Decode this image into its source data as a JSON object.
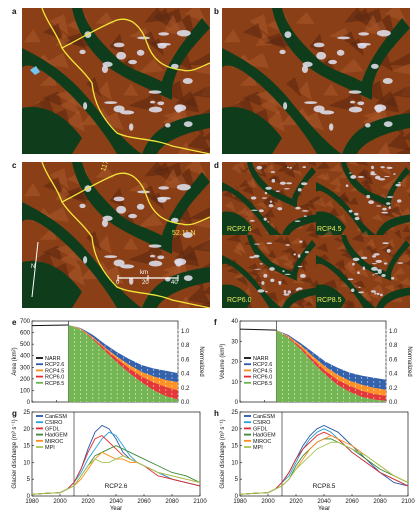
{
  "panel_letters": {
    "a": "a",
    "b": "b",
    "c": "c",
    "d": "d",
    "e": "e",
    "f": "f",
    "g": "g",
    "h": "h"
  },
  "map_c": {
    "lat_label": "52.1° N",
    "lon_label": "117.3° W",
    "north": "N",
    "scale_unit": "km",
    "scale_ticks": [
      "0",
      "20",
      "40"
    ]
  },
  "map_d": {
    "tl": "RCP2.6",
    "tr": "RCP4.5",
    "bl": "RCP6.0",
    "br": "RCP8.5"
  },
  "colors": {
    "forest": "#0f3d1c",
    "terrain": "#8a3f16",
    "ice": "#dcdce8",
    "boundary": "#f2e53a",
    "rcp26": "#2a5aa8",
    "rcp45": "#ff8c1a",
    "rcp60": "#e32d2d",
    "rcp85": "#6db24a",
    "narr": "#111111"
  },
  "chart_data": [
    {
      "id": "e",
      "type": "area",
      "ylabel": "Area (km²)",
      "y2label": "Normalized",
      "xlim": [
        1980,
        2100
      ],
      "ylim": [
        0,
        700
      ],
      "yticks": [
        0,
        100,
        200,
        300,
        400,
        500,
        600,
        700
      ],
      "y2ticks": [
        "0.0",
        "0.2",
        "0.4",
        "0.6",
        "0.8",
        "1.0"
      ],
      "legend": [
        "NARR",
        "RCP2.6",
        "RCP4.5",
        "RCP6.0",
        "RCP8.5"
      ],
      "x": [
        1980,
        2010,
        2020,
        2030,
        2040,
        2050,
        2060,
        2070,
        2080,
        2090,
        2100
      ],
      "series": [
        {
          "name": "NARR",
          "values": [
            660,
            665,
            null,
            null,
            null,
            null,
            null,
            null,
            null,
            null,
            null
          ]
        },
        {
          "name": "RCP2.6",
          "values": [
            null,
            665,
            640,
            580,
            500,
            430,
            370,
            320,
            290,
            270,
            250
          ]
        },
        {
          "name": "RCP4.5",
          "values": [
            null,
            665,
            635,
            560,
            470,
            390,
            320,
            260,
            220,
            190,
            170
          ]
        },
        {
          "name": "RCP6.0",
          "values": [
            null,
            665,
            630,
            550,
            460,
            370,
            290,
            220,
            170,
            130,
            100
          ]
        },
        {
          "name": "RCP8.5",
          "values": [
            null,
            665,
            625,
            540,
            440,
            340,
            250,
            170,
            100,
            50,
            20
          ]
        }
      ]
    },
    {
      "id": "f",
      "type": "area",
      "ylabel": "Volume (km³)",
      "y2label": "Normalized",
      "xlim": [
        1980,
        2100
      ],
      "ylim": [
        0,
        40
      ],
      "yticks": [
        0,
        10,
        20,
        30,
        40
      ],
      "y2ticks": [
        "0.0",
        "0.2",
        "0.4",
        "0.6",
        "0.8",
        "1.0"
      ],
      "legend": [
        "NARR",
        "RCP2.6",
        "RCP4.5",
        "RCP6.0",
        "RCP8.5"
      ],
      "x": [
        1980,
        2010,
        2020,
        2030,
        2040,
        2050,
        2060,
        2070,
        2080,
        2090,
        2100
      ],
      "series": [
        {
          "name": "NARR",
          "values": [
            36,
            35.5,
            null,
            null,
            null,
            null,
            null,
            null,
            null,
            null,
            null
          ]
        },
        {
          "name": "RCP2.6",
          "values": [
            null,
            35.5,
            33,
            29,
            24.5,
            20,
            17,
            14.5,
            13,
            12,
            11
          ]
        },
        {
          "name": "RCP4.5",
          "values": [
            null,
            35.5,
            32.5,
            28,
            22.5,
            17.5,
            13.5,
            10.5,
            8.5,
            7,
            6
          ]
        },
        {
          "name": "RCP6.0",
          "values": [
            null,
            35.5,
            32,
            27,
            21,
            15.5,
            11,
            8,
            5.5,
            4,
            3
          ]
        },
        {
          "name": "RCP8.5",
          "values": [
            null,
            35.5,
            31.5,
            26,
            19.5,
            13.5,
            8.5,
            5,
            2.5,
            1.2,
            0.5
          ]
        }
      ]
    },
    {
      "id": "g",
      "type": "line",
      "ylabel": "Glacier discharge (m³ s⁻¹)",
      "xlabel": "Year",
      "annotation": "RCP2.6",
      "xlim": [
        1980,
        2100
      ],
      "ylim": [
        0,
        25
      ],
      "yticks": [
        0,
        5,
        10,
        15,
        20,
        25
      ],
      "xticks": [
        1980,
        2000,
        2020,
        2040,
        2060,
        2080,
        2100
      ],
      "legend": [
        "CanESM",
        "CSIRO",
        "GFDL",
        "HadGEM",
        "MIROC",
        "MPI"
      ],
      "x": [
        1980,
        1990,
        2000,
        2005,
        2010,
        2015,
        2020,
        2025,
        2030,
        2035,
        2040,
        2045,
        2050,
        2055,
        2060,
        2070,
        2080,
        2090,
        2100
      ],
      "series": [
        {
          "name": "CanESM",
          "values": [
            0.5,
            0.8,
            1,
            2,
            4,
            8,
            14,
            19,
            21,
            20,
            17,
            13,
            11,
            10,
            9,
            7,
            5,
            4,
            3
          ]
        },
        {
          "name": "CSIRO",
          "values": [
            0.5,
            0.8,
            1,
            2,
            4,
            7,
            11,
            14,
            17,
            19,
            18,
            15,
            12,
            10,
            9,
            7,
            5,
            4,
            3
          ]
        },
        {
          "name": "GFDL",
          "values": [
            0.5,
            0.8,
            1,
            2,
            4,
            8,
            13,
            17,
            18,
            16,
            14,
            12,
            11,
            10,
            9,
            6,
            5,
            4,
            3
          ]
        },
        {
          "name": "HadGEM",
          "values": [
            0.5,
            0.8,
            1,
            2,
            3,
            6,
            9,
            12,
            13,
            14,
            15,
            14,
            13,
            12,
            11,
            9,
            7,
            6,
            4
          ]
        },
        {
          "name": "MIROC",
          "values": [
            0.5,
            0.8,
            1,
            2,
            3,
            5,
            8,
            11,
            13,
            12,
            11,
            11,
            10,
            10,
            9,
            7,
            6,
            5,
            4
          ]
        },
        {
          "name": "MPI",
          "values": [
            0.5,
            0.8,
            1,
            2,
            3,
            6,
            9,
            11,
            10,
            10,
            11,
            12,
            11,
            10,
            9,
            7,
            6,
            5,
            4
          ]
        }
      ]
    },
    {
      "id": "h",
      "type": "line",
      "ylabel": "Glacier discharge (m³ s⁻¹)",
      "xlabel": "Year",
      "annotation": "RCP8.5",
      "xlim": [
        1980,
        2100
      ],
      "ylim": [
        0,
        25
      ],
      "yticks": [
        0,
        5,
        10,
        15,
        20,
        25
      ],
      "xticks": [
        1980,
        2000,
        2020,
        2040,
        2060,
        2080,
        2100
      ],
      "legend": [
        "CanESM",
        "CSIRO",
        "GFDL",
        "HadGEM",
        "MIROC",
        "MPI"
      ],
      "x": [
        1980,
        1990,
        2000,
        2005,
        2010,
        2015,
        2020,
        2025,
        2030,
        2035,
        2040,
        2045,
        2050,
        2055,
        2060,
        2070,
        2080,
        2090,
        2100
      ],
      "series": [
        {
          "name": "CanESM",
          "values": [
            0.5,
            0.8,
            1,
            2,
            4,
            7,
            11,
            15,
            18,
            20,
            21,
            20,
            19,
            17,
            15,
            11,
            7,
            4,
            3
          ]
        },
        {
          "name": "CSIRO",
          "values": [
            0.5,
            0.8,
            1,
            2,
            4,
            6,
            10,
            14,
            17,
            19,
            20,
            19,
            17,
            15,
            13,
            10,
            7,
            5,
            3
          ]
        },
        {
          "name": "GFDL",
          "values": [
            0.5,
            0.8,
            1,
            2,
            4,
            7,
            11,
            14,
            16,
            18,
            19,
            18,
            17,
            15,
            13,
            10,
            7,
            5,
            3
          ]
        },
        {
          "name": "HadGEM",
          "values": [
            0.5,
            0.8,
            1,
            2,
            3,
            5,
            9,
            12,
            14,
            16,
            17,
            17,
            16,
            15,
            14,
            11,
            8,
            6,
            4
          ]
        },
        {
          "name": "MIROC",
          "values": [
            0.5,
            0.8,
            1,
            2,
            3,
            5,
            8,
            11,
            14,
            16,
            17,
            18,
            17,
            16,
            15,
            12,
            9,
            6,
            4
          ]
        },
        {
          "name": "MPI",
          "values": [
            0.5,
            0.8,
            1,
            2,
            3,
            5,
            8,
            10,
            12,
            14,
            15,
            16,
            16,
            15,
            14,
            12,
            9,
            6,
            4
          ]
        }
      ]
    }
  ]
}
